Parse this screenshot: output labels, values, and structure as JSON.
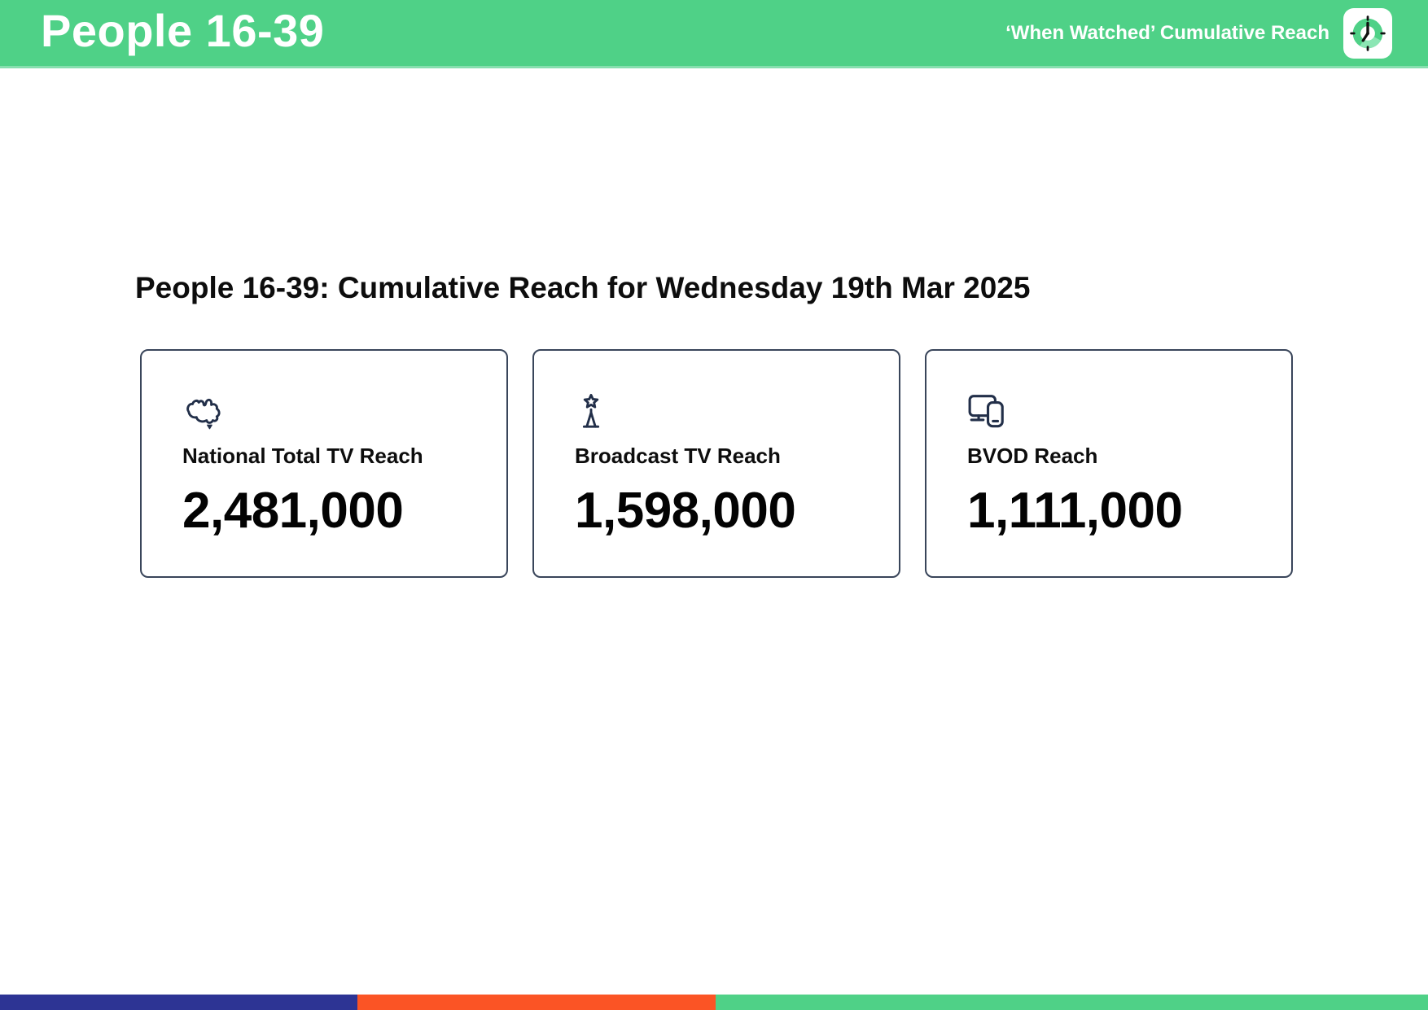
{
  "header": {
    "title": "People 16-39",
    "subtitle": "‘When Watched’ Cumulative Reach",
    "background_color": "#4fd187",
    "app_icon": "clock-icon"
  },
  "main": {
    "heading": "People 16-39: Cumulative Reach for Wednesday 19th Mar 2025",
    "cards": [
      {
        "icon": "australia-map-icon",
        "label": "National Total TV Reach",
        "value": "2,481,000"
      },
      {
        "icon": "broadcast-tower-icon",
        "label": "Broadcast TV Reach",
        "value": "1,598,000"
      },
      {
        "icon": "devices-icon",
        "label": "BVOD Reach",
        "value": "1,111,000"
      }
    ],
    "icon_color": "#222f49"
  },
  "footer": {
    "segments": [
      {
        "name": "blue",
        "color": "#2d3494",
        "width_pct": 25
      },
      {
        "name": "orange",
        "color": "#fb5425",
        "width_pct": 25.1
      },
      {
        "name": "green",
        "color": "#4fd187",
        "width_pct": 49.9
      }
    ]
  }
}
